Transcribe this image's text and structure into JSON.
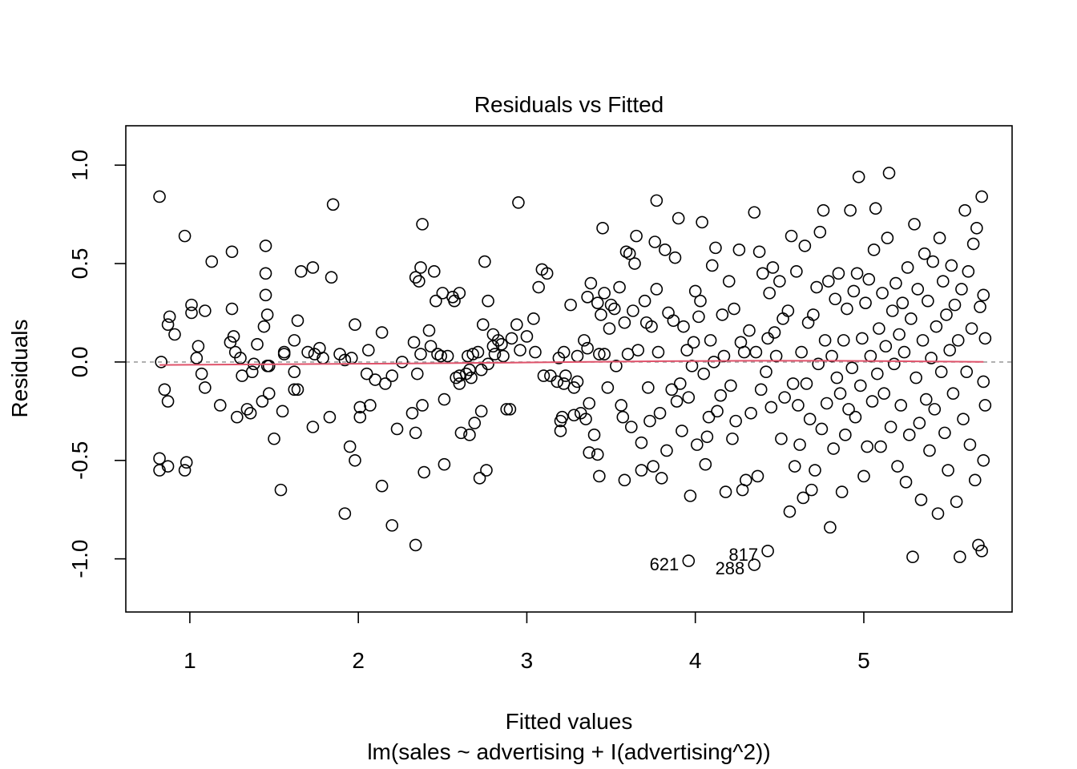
{
  "chart_data": {
    "type": "scatter",
    "title": "Residuals vs Fitted",
    "xlabel": "Fitted values",
    "subtitle": "lm(sales ~ advertising + I(advertising^2))",
    "ylabel": "Residuals",
    "xlim": [
      0.62,
      5.88
    ],
    "ylim": [
      -1.27,
      1.2
    ],
    "x_ticks": [
      1,
      2,
      3,
      4,
      5
    ],
    "x_tick_labels": [
      "1",
      "2",
      "3",
      "4",
      "5"
    ],
    "y_ticks": [
      -1.0,
      -0.5,
      0.0,
      0.5,
      1.0
    ],
    "y_tick_labels": [
      "-1.0",
      "-0.5",
      "0.0",
      "0.5",
      "1.0"
    ],
    "colors": {
      "points": "#000000",
      "smooth": "#DF536B",
      "reference": "#9E9E9E",
      "axes": "#000000"
    },
    "grid": false,
    "reference_line": {
      "y": 0,
      "style": "dashed"
    },
    "labeled_points": [
      {
        "label": "621",
        "x": 3.96,
        "y": -1.01
      },
      {
        "label": "288",
        "x": 4.35,
        "y": -1.03
      },
      {
        "label": "817",
        "x": 4.43,
        "y": -0.96
      }
    ],
    "cluster_points": [
      [
        0.82,
        0.84
      ],
      [
        0.97,
        0.64
      ],
      [
        0.83,
        0.0
      ],
      [
        0.87,
        0.19
      ],
      [
        0.88,
        0.23
      ],
      [
        0.91,
        0.14
      ],
      [
        0.85,
        -0.14
      ],
      [
        0.87,
        -0.2
      ],
      [
        0.82,
        -0.49
      ],
      [
        0.82,
        -0.55
      ],
      [
        0.87,
        -0.53
      ],
      [
        0.97,
        -0.55
      ],
      [
        0.98,
        -0.51
      ],
      [
        1.01,
        0.29
      ],
      [
        1.01,
        0.25
      ],
      [
        1.04,
        0.02
      ],
      [
        1.05,
        0.08
      ],
      [
        1.07,
        -0.06
      ],
      [
        1.09,
        0.26
      ],
      [
        1.09,
        -0.13
      ],
      [
        1.13,
        0.51
      ],
      [
        1.18,
        -0.22
      ],
      [
        1.25,
        0.56
      ],
      [
        1.25,
        0.27
      ],
      [
        1.24,
        0.1
      ],
      [
        1.26,
        0.13
      ],
      [
        1.27,
        0.05
      ],
      [
        1.28,
        -0.28
      ],
      [
        1.3,
        0.02
      ],
      [
        1.31,
        -0.07
      ],
      [
        1.34,
        -0.24
      ],
      [
        1.36,
        -0.26
      ],
      [
        1.37,
        -0.05
      ],
      [
        1.38,
        -0.01
      ],
      [
        1.4,
        0.09
      ],
      [
        1.43,
        -0.2
      ],
      [
        1.44,
        0.18
      ],
      [
        1.45,
        0.59
      ],
      [
        1.45,
        0.45
      ],
      [
        1.45,
        0.34
      ],
      [
        1.46,
        0.24
      ],
      [
        1.46,
        -0.02
      ],
      [
        1.47,
        -0.02
      ],
      [
        1.47,
        -0.16
      ],
      [
        1.5,
        -0.39
      ],
      [
        1.54,
        -0.65
      ],
      [
        1.55,
        -0.25
      ],
      [
        1.56,
        0.05
      ],
      [
        1.56,
        0.04
      ],
      [
        1.62,
        0.11
      ],
      [
        1.62,
        -0.05
      ],
      [
        1.62,
        -0.14
      ],
      [
        1.64,
        0.21
      ],
      [
        1.64,
        -0.14
      ],
      [
        1.66,
        0.46
      ],
      [
        1.7,
        0.05
      ],
      [
        1.73,
        0.48
      ],
      [
        1.74,
        0.04
      ],
      [
        1.73,
        -0.33
      ],
      [
        1.77,
        0.07
      ],
      [
        1.79,
        0.02
      ],
      [
        1.85,
        0.8
      ],
      [
        1.84,
        0.43
      ],
      [
        1.83,
        -0.28
      ],
      [
        1.89,
        0.04
      ],
      [
        1.92,
        0.01
      ],
      [
        1.92,
        -0.77
      ],
      [
        1.96,
        0.02
      ],
      [
        1.95,
        -0.43
      ],
      [
        1.98,
        0.19
      ],
      [
        1.98,
        -0.5
      ],
      [
        2.01,
        -0.23
      ],
      [
        2.01,
        -0.28
      ],
      [
        2.05,
        -0.06
      ],
      [
        2.06,
        0.06
      ],
      [
        2.07,
        -0.22
      ],
      [
        2.1,
        -0.09
      ],
      [
        2.14,
        0.15
      ],
      [
        2.14,
        -0.63
      ],
      [
        2.16,
        -0.11
      ],
      [
        2.2,
        -0.07
      ],
      [
        2.2,
        -0.83
      ],
      [
        2.23,
        -0.34
      ],
      [
        2.26,
        0.0
      ],
      [
        2.32,
        -0.26
      ],
      [
        2.33,
        0.1
      ],
      [
        2.34,
        0.43
      ],
      [
        2.34,
        -0.36
      ],
      [
        2.35,
        -0.06
      ],
      [
        2.34,
        -0.93
      ],
      [
        2.36,
        0.41
      ],
      [
        2.37,
        0.48
      ],
      [
        2.38,
        0.7
      ],
      [
        2.37,
        0.04
      ],
      [
        2.38,
        -0.22
      ],
      [
        2.39,
        -0.56
      ],
      [
        2.42,
        0.16
      ],
      [
        2.43,
        0.08
      ],
      [
        2.45,
        0.46
      ],
      [
        2.46,
        0.31
      ],
      [
        2.47,
        0.04
      ],
      [
        2.49,
        0.03
      ],
      [
        2.5,
        0.35
      ],
      [
        2.51,
        -0.52
      ],
      [
        2.51,
        -0.19
      ],
      [
        2.53,
        0.03
      ],
      [
        2.56,
        0.33
      ],
      [
        2.57,
        0.31
      ],
      [
        2.58,
        -0.08
      ],
      [
        2.6,
        0.35
      ],
      [
        2.6,
        -0.07
      ],
      [
        2.6,
        -0.11
      ],
      [
        2.61,
        -0.36
      ],
      [
        2.64,
        -0.06
      ],
      [
        2.65,
        0.03
      ],
      [
        2.66,
        -0.04
      ],
      [
        2.67,
        -0.08
      ],
      [
        2.68,
        0.04
      ],
      [
        2.66,
        -0.37
      ],
      [
        2.69,
        -0.31
      ],
      [
        2.71,
        0.05
      ],
      [
        2.73,
        -0.04
      ],
      [
        2.74,
        0.19
      ],
      [
        2.73,
        -0.25
      ],
      [
        2.72,
        -0.59
      ],
      [
        2.75,
        0.51
      ],
      [
        2.77,
        0.31
      ],
      [
        2.77,
        -0.01
      ],
      [
        2.76,
        -0.55
      ],
      [
        2.8,
        0.08
      ],
      [
        2.8,
        0.14
      ],
      [
        2.81,
        0.04
      ],
      [
        2.83,
        0.11
      ],
      [
        2.85,
        0.09
      ],
      [
        2.86,
        0.03
      ],
      [
        2.88,
        -0.24
      ],
      [
        2.9,
        -0.24
      ],
      [
        2.91,
        0.12
      ],
      [
        2.94,
        0.19
      ],
      [
        2.95,
        0.81
      ],
      [
        2.96,
        0.06
      ],
      [
        3.0,
        0.13
      ],
      [
        3.04,
        0.22
      ],
      [
        3.05,
        0.05
      ],
      [
        3.07,
        0.38
      ],
      [
        3.09,
        0.47
      ],
      [
        3.1,
        -0.07
      ],
      [
        3.12,
        0.45
      ],
      [
        3.14,
        -0.07
      ],
      [
        3.18,
        -0.1
      ],
      [
        3.19,
        0.02
      ],
      [
        3.2,
        -0.35
      ],
      [
        3.21,
        -0.28
      ],
      [
        3.2,
        -0.3
      ],
      [
        3.22,
        0.05
      ],
      [
        3.22,
        -0.11
      ]
    ],
    "points": [
      [
        3.23,
        -0.07
      ],
      [
        3.26,
        0.29
      ],
      [
        3.28,
        -0.13
      ],
      [
        3.3,
        -0.1
      ],
      [
        3.28,
        -0.27
      ],
      [
        3.3,
        0.03
      ],
      [
        3.32,
        -0.26
      ],
      [
        3.34,
        0.11
      ],
      [
        3.35,
        -0.29
      ],
      [
        3.36,
        0.33
      ],
      [
        3.36,
        0.07
      ],
      [
        3.37,
        -0.46
      ],
      [
        3.37,
        -0.21
      ],
      [
        3.38,
        0.4
      ],
      [
        3.4,
        -0.37
      ],
      [
        3.42,
        0.3
      ],
      [
        3.42,
        -0.47
      ],
      [
        3.43,
        0.04
      ],
      [
        3.43,
        -0.58
      ],
      [
        3.44,
        0.24
      ],
      [
        3.45,
        0.68
      ],
      [
        3.46,
        0.35
      ],
      [
        3.46,
        0.04
      ],
      [
        3.48,
        -0.13
      ],
      [
        3.49,
        0.17
      ],
      [
        3.5,
        0.29
      ],
      [
        3.52,
        0.27
      ],
      [
        3.53,
        -0.02
      ],
      [
        3.55,
        0.38
      ],
      [
        3.56,
        -0.22
      ],
      [
        3.57,
        -0.28
      ],
      [
        3.58,
        0.2
      ],
      [
        3.58,
        -0.6
      ],
      [
        3.59,
        0.56
      ],
      [
        3.6,
        0.04
      ],
      [
        3.61,
        0.55
      ],
      [
        3.62,
        -0.33
      ],
      [
        3.63,
        0.26
      ],
      [
        3.64,
        0.5
      ],
      [
        3.65,
        0.64
      ],
      [
        3.66,
        0.06
      ],
      [
        3.68,
        -0.41
      ],
      [
        3.68,
        -0.55
      ],
      [
        3.7,
        0.31
      ],
      [
        3.71,
        0.2
      ],
      [
        3.72,
        -0.13
      ],
      [
        3.73,
        -0.3
      ],
      [
        3.74,
        0.18
      ],
      [
        3.75,
        -0.53
      ],
      [
        3.76,
        0.61
      ],
      [
        3.77,
        0.82
      ],
      [
        3.77,
        0.37
      ],
      [
        3.78,
        0.05
      ],
      [
        3.79,
        -0.26
      ],
      [
        3.8,
        -0.59
      ],
      [
        3.82,
        0.57
      ],
      [
        3.83,
        -0.45
      ],
      [
        3.84,
        0.25
      ],
      [
        3.86,
        -0.14
      ],
      [
        3.87,
        0.21
      ],
      [
        3.88,
        0.53
      ],
      [
        3.89,
        -0.2
      ],
      [
        3.9,
        0.73
      ],
      [
        3.91,
        -0.11
      ],
      [
        3.92,
        -0.35
      ],
      [
        3.93,
        0.18
      ],
      [
        3.95,
        0.06
      ],
      [
        3.96,
        -0.18
      ],
      [
        3.97,
        -0.68
      ],
      [
        3.98,
        -0.02
      ],
      [
        3.99,
        0.1
      ],
      [
        4.0,
        0.36
      ],
      [
        4.01,
        -0.42
      ],
      [
        4.02,
        0.23
      ],
      [
        4.03,
        0.31
      ],
      [
        4.04,
        0.71
      ],
      [
        4.05,
        -0.06
      ],
      [
        4.06,
        -0.52
      ],
      [
        4.07,
        -0.38
      ],
      [
        4.08,
        -0.28
      ],
      [
        4.09,
        0.11
      ],
      [
        4.1,
        0.49
      ],
      [
        4.11,
        0.0
      ],
      [
        4.12,
        0.58
      ],
      [
        4.13,
        -0.25
      ],
      [
        4.15,
        -0.17
      ],
      [
        4.16,
        0.24
      ],
      [
        4.17,
        0.03
      ],
      [
        4.18,
        -0.66
      ],
      [
        4.2,
        0.41
      ],
      [
        4.21,
        -0.12
      ],
      [
        4.22,
        -0.39
      ],
      [
        4.23,
        0.27
      ],
      [
        4.24,
        -0.3
      ],
      [
        4.26,
        0.57
      ],
      [
        4.27,
        0.1
      ],
      [
        4.28,
        -0.65
      ],
      [
        4.29,
        0.05
      ],
      [
        4.3,
        -0.6
      ],
      [
        4.32,
        0.16
      ],
      [
        4.33,
        -0.26
      ],
      [
        4.35,
        0.76
      ],
      [
        4.36,
        0.05
      ],
      [
        4.37,
        -0.58
      ],
      [
        4.38,
        0.56
      ],
      [
        4.39,
        -0.14
      ],
      [
        4.4,
        0.45
      ],
      [
        4.42,
        -0.05
      ],
      [
        4.43,
        0.12
      ],
      [
        4.44,
        0.35
      ],
      [
        4.45,
        -0.23
      ],
      [
        4.46,
        0.48
      ],
      [
        4.47,
        0.15
      ],
      [
        4.48,
        0.03
      ],
      [
        4.5,
        0.41
      ],
      [
        4.51,
        -0.39
      ],
      [
        4.52,
        0.22
      ],
      [
        4.53,
        -0.18
      ],
      [
        4.55,
        0.26
      ],
      [
        4.56,
        -0.76
      ],
      [
        4.57,
        0.64
      ],
      [
        4.58,
        -0.11
      ],
      [
        4.59,
        -0.53
      ],
      [
        4.6,
        0.46
      ],
      [
        4.61,
        -0.22
      ],
      [
        4.62,
        -0.42
      ],
      [
        4.63,
        0.05
      ],
      [
        4.64,
        -0.69
      ],
      [
        4.65,
        0.59
      ],
      [
        4.66,
        -0.11
      ],
      [
        4.67,
        0.2
      ],
      [
        4.68,
        -0.29
      ],
      [
        4.69,
        -0.65
      ],
      [
        4.7,
        0.24
      ],
      [
        4.71,
        -0.55
      ],
      [
        4.72,
        0.38
      ],
      [
        4.73,
        -0.01
      ],
      [
        4.74,
        0.66
      ],
      [
        4.75,
        -0.34
      ],
      [
        4.76,
        0.77
      ],
      [
        4.77,
        0.11
      ],
      [
        4.78,
        -0.21
      ],
      [
        4.79,
        0.41
      ],
      [
        4.8,
        -0.84
      ],
      [
        4.81,
        0.03
      ],
      [
        4.82,
        -0.44
      ],
      [
        4.83,
        0.32
      ],
      [
        4.84,
        -0.08
      ],
      [
        4.85,
        0.45
      ],
      [
        4.86,
        -0.16
      ],
      [
        4.87,
        -0.66
      ],
      [
        4.88,
        0.11
      ],
      [
        4.89,
        -0.37
      ],
      [
        4.9,
        0.27
      ],
      [
        4.91,
        -0.24
      ],
      [
        4.92,
        0.77
      ],
      [
        4.93,
        -0.03
      ],
      [
        4.94,
        0.36
      ],
      [
        4.95,
        -0.28
      ],
      [
        4.96,
        0.45
      ],
      [
        4.97,
        0.94
      ],
      [
        4.98,
        -0.12
      ],
      [
        4.99,
        0.12
      ],
      [
        5.0,
        -0.58
      ],
      [
        5.01,
        0.3
      ],
      [
        5.02,
        -0.43
      ],
      [
        5.03,
        0.42
      ],
      [
        5.04,
        0.03
      ],
      [
        5.05,
        -0.2
      ],
      [
        5.06,
        0.57
      ],
      [
        5.07,
        0.78
      ],
      [
        5.08,
        -0.06
      ],
      [
        5.09,
        0.17
      ],
      [
        5.1,
        -0.43
      ],
      [
        5.11,
        0.35
      ],
      [
        5.12,
        -0.16
      ],
      [
        5.13,
        0.08
      ],
      [
        5.14,
        0.63
      ],
      [
        5.15,
        0.96
      ],
      [
        5.16,
        -0.33
      ],
      [
        5.17,
        0.26
      ],
      [
        5.18,
        -0.01
      ],
      [
        5.19,
        0.4
      ],
      [
        5.2,
        -0.53
      ],
      [
        5.21,
        0.14
      ],
      [
        5.22,
        -0.22
      ],
      [
        5.23,
        0.3
      ],
      [
        5.24,
        0.05
      ],
      [
        5.25,
        -0.61
      ],
      [
        5.26,
        0.48
      ],
      [
        5.27,
        -0.37
      ],
      [
        5.28,
        0.22
      ],
      [
        5.29,
        -0.99
      ],
      [
        5.3,
        0.7
      ],
      [
        5.31,
        -0.08
      ],
      [
        5.32,
        0.37
      ],
      [
        5.33,
        -0.31
      ],
      [
        5.34,
        -0.7
      ],
      [
        5.35,
        0.11
      ],
      [
        5.36,
        0.55
      ],
      [
        5.37,
        -0.19
      ],
      [
        5.38,
        0.31
      ],
      [
        5.39,
        -0.45
      ],
      [
        5.4,
        0.02
      ],
      [
        5.41,
        0.51
      ],
      [
        5.42,
        -0.24
      ],
      [
        5.43,
        0.18
      ],
      [
        5.44,
        -0.77
      ],
      [
        5.45,
        0.63
      ],
      [
        5.46,
        -0.05
      ],
      [
        5.47,
        0.41
      ],
      [
        5.48,
        -0.36
      ],
      [
        5.49,
        0.24
      ],
      [
        5.5,
        -0.55
      ],
      [
        5.51,
        0.06
      ],
      [
        5.52,
        0.49
      ],
      [
        5.53,
        -0.16
      ],
      [
        5.54,
        0.29
      ],
      [
        5.55,
        -0.71
      ],
      [
        5.56,
        0.11
      ],
      [
        5.57,
        -0.99
      ],
      [
        5.58,
        0.37
      ],
      [
        5.59,
        -0.29
      ],
      [
        5.6,
        0.77
      ],
      [
        5.61,
        -0.05
      ],
      [
        5.62,
        0.46
      ],
      [
        5.63,
        -0.42
      ],
      [
        5.64,
        0.17
      ],
      [
        5.65,
        0.6
      ],
      [
        5.66,
        -0.6
      ],
      [
        5.67,
        0.68
      ],
      [
        5.68,
        -0.93
      ],
      [
        5.69,
        0.28
      ],
      [
        5.7,
        -0.96
      ],
      [
        5.7,
        0.84
      ],
      [
        5.71,
        -0.1
      ],
      [
        5.71,
        0.34
      ],
      [
        5.71,
        -0.5
      ],
      [
        5.72,
        0.12
      ],
      [
        5.72,
        -0.22
      ]
    ],
    "smooth_line": {
      "x": [
        0.82,
        1.5,
        2.2,
        2.8,
        3.3,
        3.8,
        4.3,
        4.8,
        5.2,
        5.5,
        5.71
      ],
      "y": [
        -0.015,
        -0.012,
        -0.008,
        -0.004,
        0.0,
        0.004,
        0.006,
        0.006,
        0.004,
        0.002,
        0.001
      ]
    }
  }
}
